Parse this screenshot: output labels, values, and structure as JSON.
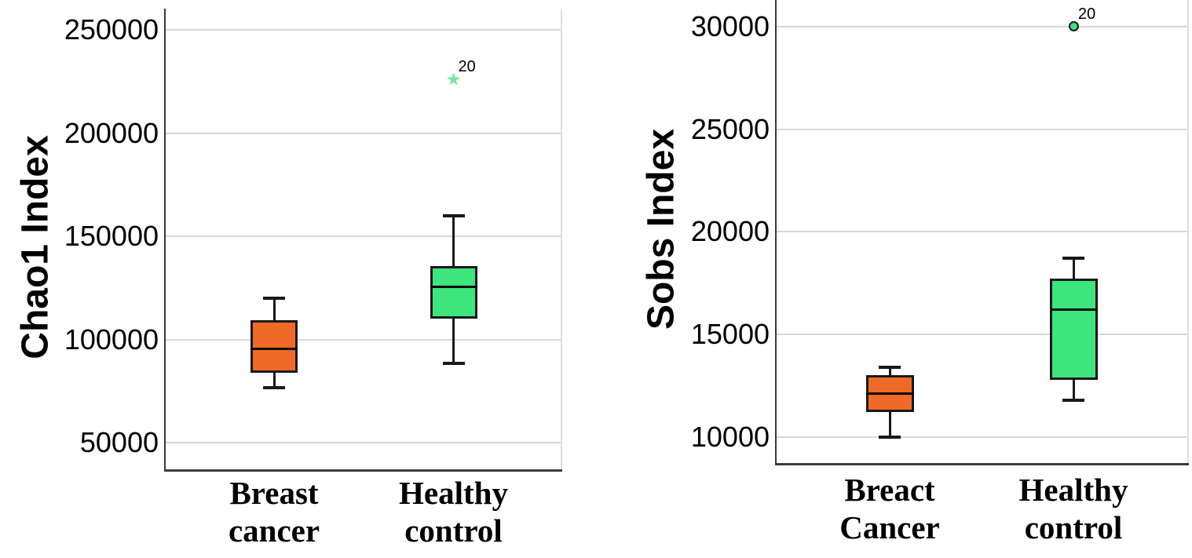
{
  "figure": {
    "background": "#ffffff",
    "grid_color": "#d8d8d8",
    "axis_color": "#3b3b3b",
    "box_border_color": "#191919"
  },
  "chart_data": [
    {
      "type": "box",
      "title": "",
      "ylabel": "Chao1 Index",
      "xlabel": "",
      "grid": true,
      "yticks": [
        250000,
        200000,
        150000,
        100000,
        50000
      ],
      "ylim": [
        36700,
        260300
      ],
      "categories": [
        "Breast cancer",
        "Healthy control"
      ],
      "series": [
        {
          "name": "Breast cancer",
          "label_lines": [
            "Breast",
            "cancer"
          ],
          "color": "#ef6a26",
          "whisker_low": 76500,
          "q1": 84000,
          "median": 95500,
          "q3": 109500,
          "whisker_high": 120000,
          "outliers": []
        },
        {
          "name": "Healthy control",
          "label_lines": [
            "Healthy",
            "control"
          ],
          "color": "#3ee47c",
          "whisker_low": 88500,
          "q1": 110000,
          "median": 125500,
          "q3": 135500,
          "whisker_high": 160000,
          "outliers": [
            {
              "value": 226000,
              "label": "20",
              "marker": "star",
              "color": "#70e89e"
            }
          ]
        }
      ]
    },
    {
      "type": "box",
      "title": "",
      "ylabel": "Sobs Index",
      "xlabel": "",
      "grid": true,
      "yticks": [
        30000,
        25000,
        20000,
        15000,
        10000
      ],
      "ylim": [
        8690,
        31300
      ],
      "categories": [
        "Breact Cancer",
        "Healthy control"
      ],
      "series": [
        {
          "name": "Breact Cancer",
          "label_lines": [
            "Breact",
            "Cancer"
          ],
          "color": "#ef6a26",
          "whisker_low": 10000,
          "q1": 11200,
          "median": 12100,
          "q3": 13000,
          "whisker_high": 13400,
          "outliers": []
        },
        {
          "name": "Healthy control",
          "label_lines": [
            "Healthy",
            "control"
          ],
          "color": "#3ee47c",
          "whisker_low": 11800,
          "q1": 12800,
          "median": 16200,
          "q3": 17700,
          "whisker_high": 18700,
          "outliers": [
            {
              "value": 30000,
              "label": "20",
              "marker": "circle",
              "color": "#3ee47c"
            }
          ]
        }
      ]
    }
  ]
}
